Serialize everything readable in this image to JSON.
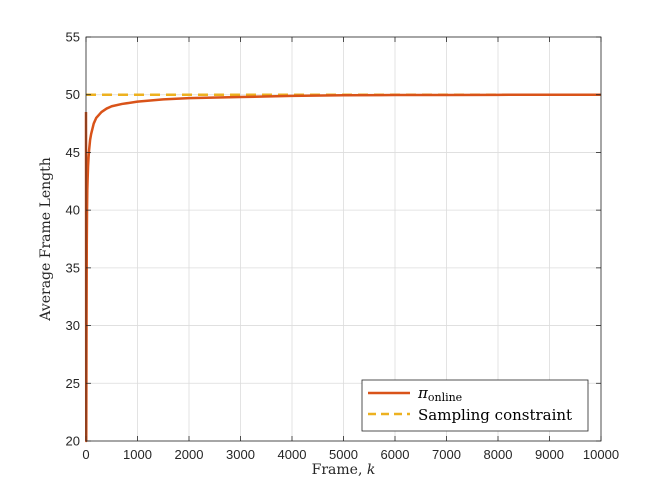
{
  "chart_data": {
    "type": "line",
    "title": "",
    "xlabel": "Frame, ",
    "xlabel_var": "k",
    "ylabel": "Average Frame Length",
    "xlim": [
      0,
      10000
    ],
    "ylim": [
      20,
      55
    ],
    "xticks": [
      0,
      1000,
      2000,
      3000,
      4000,
      5000,
      6000,
      7000,
      8000,
      9000,
      10000
    ],
    "yticks": [
      20,
      25,
      30,
      35,
      40,
      45,
      50,
      55
    ],
    "grid": true,
    "legend_position": "bottom-right",
    "series": [
      {
        "name": "π",
        "name_subscript": "online",
        "color": "#D95319",
        "style": "solid",
        "x": [
          0,
          5,
          10,
          15,
          20,
          25,
          30,
          40,
          50,
          60,
          80,
          100,
          150,
          200,
          300,
          400,
          500,
          700,
          1000,
          1500,
          2000,
          3000,
          4000,
          5000,
          6000,
          7000,
          8000,
          9000,
          10000
        ],
        "y": [
          48.5,
          20,
          30,
          37,
          40,
          41.7,
          42.5,
          43.8,
          44.6,
          45.2,
          46.1,
          46.6,
          47.5,
          48.0,
          48.5,
          48.8,
          49.0,
          49.2,
          49.4,
          49.6,
          49.7,
          49.8,
          49.9,
          49.95,
          49.97,
          49.98,
          49.99,
          50.0,
          50.0
        ]
      },
      {
        "name": "Sampling constraint",
        "color": "#EDB120",
        "style": "dashed",
        "x": [
          0,
          10000
        ],
        "y": [
          50,
          50
        ]
      }
    ]
  }
}
